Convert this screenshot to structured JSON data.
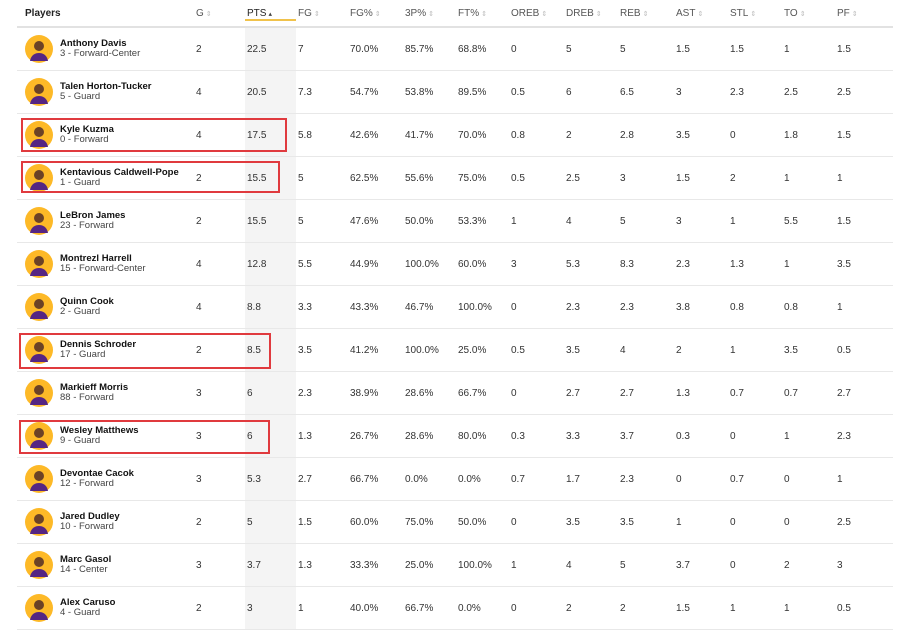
{
  "table": {
    "columns": [
      {
        "key": "players",
        "label": "Players"
      },
      {
        "key": "g",
        "label": "G",
        "sort": "⇕"
      },
      {
        "key": "pts",
        "label": "PTS",
        "sort": "▴"
      },
      {
        "key": "fg",
        "label": "FG",
        "sort": "⇕"
      },
      {
        "key": "fgp",
        "label": "FG%",
        "sort": "⇕"
      },
      {
        "key": "3p",
        "label": "3P%",
        "sort": "⇕"
      },
      {
        "key": "ftp",
        "label": "FT%",
        "sort": "⇕"
      },
      {
        "key": "oreb",
        "label": "OREB",
        "sort": "⇕"
      },
      {
        "key": "dreb",
        "label": "DREB",
        "sort": "⇕"
      },
      {
        "key": "reb",
        "label": "REB",
        "sort": "⇕"
      },
      {
        "key": "ast",
        "label": "AST",
        "sort": "⇕"
      },
      {
        "key": "stl",
        "label": "STL",
        "sort": "⇕"
      },
      {
        "key": "to",
        "label": "TO",
        "sort": "⇕"
      },
      {
        "key": "pf",
        "label": "PF",
        "sort": "⇕"
      }
    ],
    "rows": [
      {
        "name": "Anthony Davis",
        "sub": "3 - Forward-Center",
        "g": "2",
        "pts": "22.5",
        "fg": "7",
        "fgp": "70.0%",
        "3p": "85.7%",
        "ftp": "68.8%",
        "oreb": "0",
        "dreb": "5",
        "reb": "5",
        "ast": "1.5",
        "stl": "1.5",
        "to": "1",
        "pf": "1.5"
      },
      {
        "name": "Talen Horton-Tucker",
        "sub": "5 - Guard",
        "g": "4",
        "pts": "20.5",
        "fg": "7.3",
        "fgp": "54.7%",
        "3p": "53.8%",
        "ftp": "89.5%",
        "oreb": "0.5",
        "dreb": "6",
        "reb": "6.5",
        "ast": "3",
        "stl": "2.3",
        "to": "2.5",
        "pf": "2.5"
      },
      {
        "name": "Kyle Kuzma",
        "sub": "0 - Forward",
        "g": "4",
        "pts": "17.5",
        "fg": "5.8",
        "fgp": "42.6%",
        "3p": "41.7%",
        "ftp": "70.0%",
        "oreb": "0.8",
        "dreb": "2",
        "reb": "2.8",
        "ast": "3.5",
        "stl": "0",
        "to": "1.8",
        "pf": "1.5"
      },
      {
        "name": "Kentavious Caldwell-Pope",
        "sub": "1 - Guard",
        "g": "2",
        "pts": "15.5",
        "fg": "5",
        "fgp": "62.5%",
        "3p": "55.6%",
        "ftp": "75.0%",
        "oreb": "0.5",
        "dreb": "2.5",
        "reb": "3",
        "ast": "1.5",
        "stl": "2",
        "to": "1",
        "pf": "1"
      },
      {
        "name": "LeBron James",
        "sub": "23 - Forward",
        "g": "2",
        "pts": "15.5",
        "fg": "5",
        "fgp": "47.6%",
        "3p": "50.0%",
        "ftp": "53.3%",
        "oreb": "1",
        "dreb": "4",
        "reb": "5",
        "ast": "3",
        "stl": "1",
        "to": "5.5",
        "pf": "1.5"
      },
      {
        "name": "Montrezl Harrell",
        "sub": "15 - Forward-Center",
        "g": "4",
        "pts": "12.8",
        "fg": "5.5",
        "fgp": "44.9%",
        "3p": "100.0%",
        "ftp": "60.0%",
        "oreb": "3",
        "dreb": "5.3",
        "reb": "8.3",
        "ast": "2.3",
        "stl": "1.3",
        "to": "1",
        "pf": "3.5"
      },
      {
        "name": "Quinn Cook",
        "sub": "2 - Guard",
        "g": "4",
        "pts": "8.8",
        "fg": "3.3",
        "fgp": "43.3%",
        "3p": "46.7%",
        "ftp": "100.0%",
        "oreb": "0",
        "dreb": "2.3",
        "reb": "2.3",
        "ast": "3.8",
        "stl": "0.8",
        "to": "0.8",
        "pf": "1"
      },
      {
        "name": "Dennis Schroder",
        "sub": "17 - Guard",
        "g": "2",
        "pts": "8.5",
        "fg": "3.5",
        "fgp": "41.2%",
        "3p": "100.0%",
        "ftp": "25.0%",
        "oreb": "0.5",
        "dreb": "3.5",
        "reb": "4",
        "ast": "2",
        "stl": "1",
        "to": "3.5",
        "pf": "0.5"
      },
      {
        "name": "Markieff Morris",
        "sub": "88 - Forward",
        "g": "3",
        "pts": "6",
        "fg": "2.3",
        "fgp": "38.9%",
        "3p": "28.6%",
        "ftp": "66.7%",
        "oreb": "0",
        "dreb": "2.7",
        "reb": "2.7",
        "ast": "1.3",
        "stl": "0.7",
        "to": "0.7",
        "pf": "2.7"
      },
      {
        "name": "Wesley Matthews",
        "sub": "9 - Guard",
        "g": "3",
        "pts": "6",
        "fg": "1.3",
        "fgp": "26.7%",
        "3p": "28.6%",
        "ftp": "80.0%",
        "oreb": "0.3",
        "dreb": "3.3",
        "reb": "3.7",
        "ast": "0.3",
        "stl": "0",
        "to": "1",
        "pf": "2.3"
      },
      {
        "name": "Devontae Cacok",
        "sub": "12 - Forward",
        "g": "3",
        "pts": "5.3",
        "fg": "2.7",
        "fgp": "66.7%",
        "3p": "0.0%",
        "ftp": "0.0%",
        "oreb": "0.7",
        "dreb": "1.7",
        "reb": "2.3",
        "ast": "0",
        "stl": "0.7",
        "to": "0",
        "pf": "1"
      },
      {
        "name": "Jared Dudley",
        "sub": "10 - Forward",
        "g": "2",
        "pts": "5",
        "fg": "1.5",
        "fgp": "60.0%",
        "3p": "75.0%",
        "ftp": "50.0%",
        "oreb": "0",
        "dreb": "3.5",
        "reb": "3.5",
        "ast": "1",
        "stl": "0",
        "to": "0",
        "pf": "2.5"
      },
      {
        "name": "Marc Gasol",
        "sub": "14 - Center",
        "g": "3",
        "pts": "3.7",
        "fg": "1.3",
        "fgp": "33.3%",
        "3p": "25.0%",
        "ftp": "100.0%",
        "oreb": "1",
        "dreb": "4",
        "reb": "5",
        "ast": "3.7",
        "stl": "0",
        "to": "2",
        "pf": "3"
      },
      {
        "name": "Alex Caruso",
        "sub": "4 - Guard",
        "g": "2",
        "pts": "3",
        "fg": "1",
        "fgp": "40.0%",
        "3p": "66.7%",
        "ftp": "0.0%",
        "oreb": "0",
        "dreb": "2",
        "reb": "2",
        "ast": "1.5",
        "stl": "1",
        "to": "1",
        "pf": "0.5"
      }
    ]
  },
  "annotations": {
    "highlighted_players": [
      "Kyle Kuzma",
      "Kentavious Caldwell-Pope",
      "Dennis Schroder",
      "Wesley Matthews"
    ],
    "highlight_color": "#e03a3e"
  },
  "colors": {
    "avatar_bg": "#fdb927",
    "sorted_column_bg": "#f4f4f4",
    "sort_underline": "#f0c24b"
  }
}
